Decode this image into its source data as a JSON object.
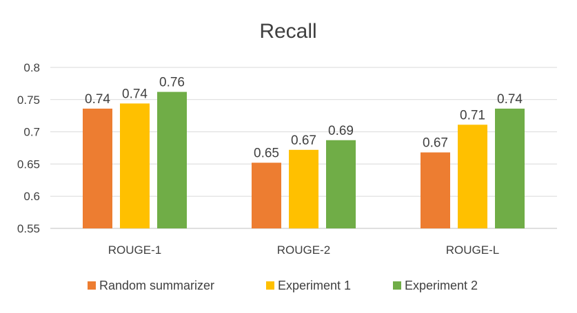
{
  "chart_data": {
    "type": "bar",
    "title": "Recall",
    "categories": [
      "ROUGE-1",
      "ROUGE-2",
      "ROUGE-L"
    ],
    "series": [
      {
        "name": "Random summarizer",
        "color": "#ED7D31",
        "values": [
          0.736,
          0.652,
          0.668
        ],
        "labels": [
          "0.74",
          "0.65",
          "0.67"
        ]
      },
      {
        "name": "Experiment 1",
        "color": "#FFC000",
        "values": [
          0.744,
          0.672,
          0.711
        ],
        "labels": [
          "0.74",
          "0.67",
          "0.71"
        ]
      },
      {
        "name": "Experiment 2",
        "color": "#70AD47",
        "values": [
          0.762,
          0.687,
          0.736
        ],
        "labels": [
          "0.76",
          "0.69",
          "0.74"
        ]
      }
    ],
    "ylim": [
      0.55,
      0.8
    ],
    "yticks": [
      0.55,
      0.6,
      0.65,
      0.7,
      0.75,
      0.8
    ],
    "ytick_labels": [
      "0.55",
      "0.6",
      "0.65",
      "0.7",
      "0.75",
      "0.8"
    ],
    "grid": true,
    "legend": "bottom"
  }
}
